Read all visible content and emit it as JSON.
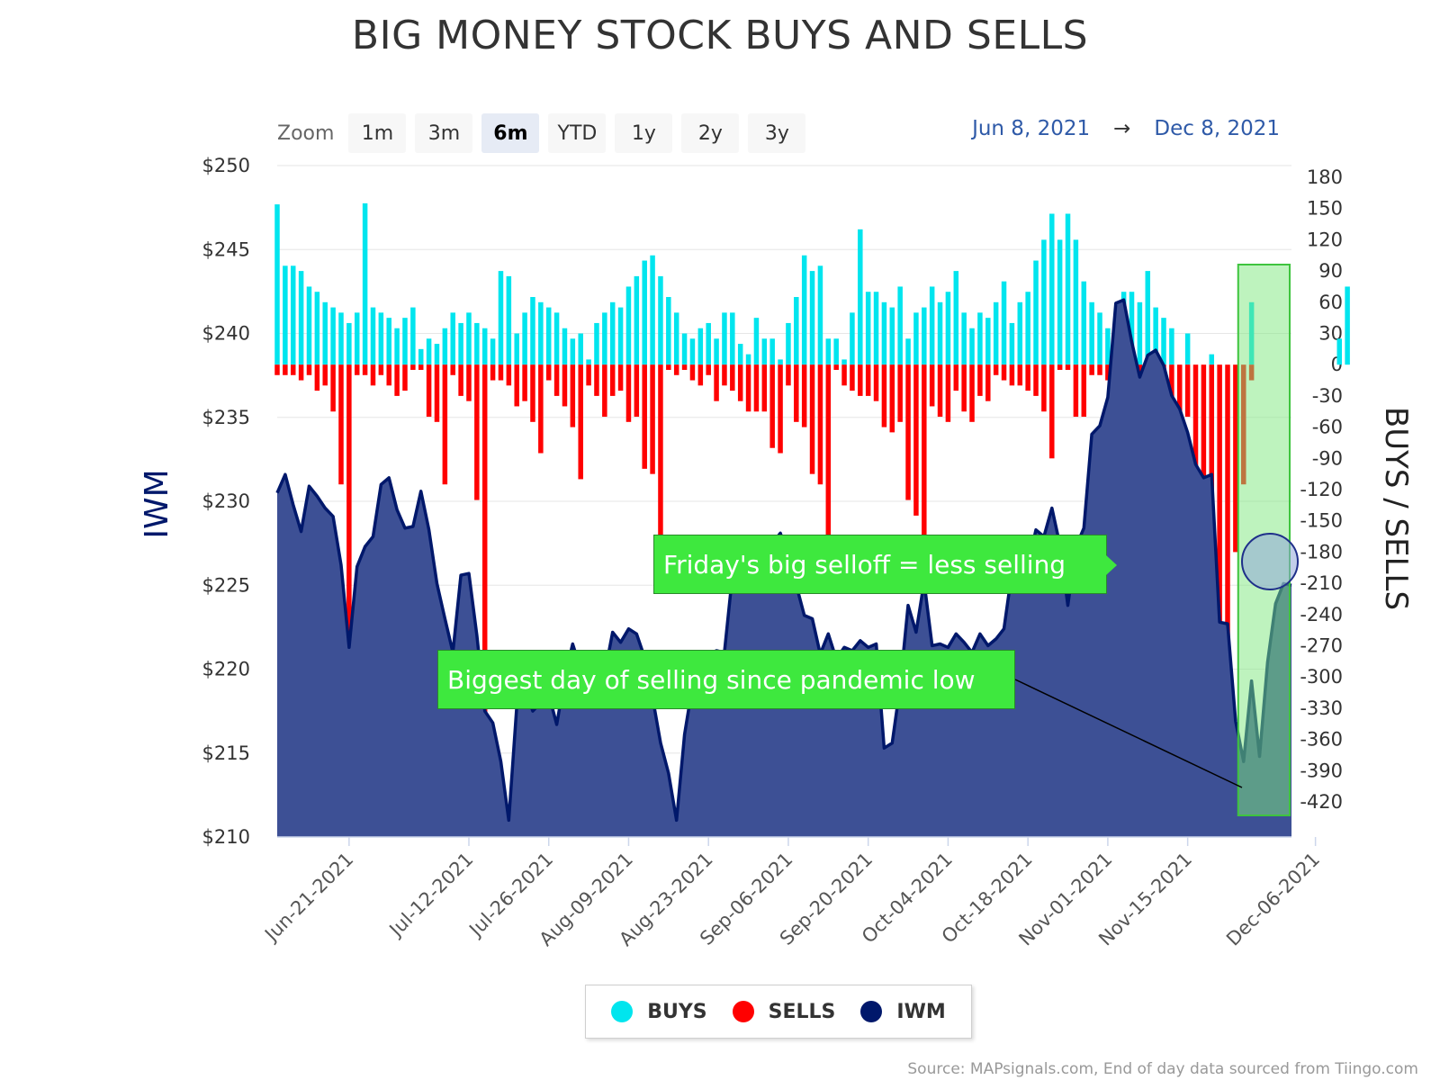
{
  "title": "BIG MONEY STOCK BUYS AND SELLS",
  "zoom": {
    "label": "Zoom",
    "buttons": [
      "1m",
      "3m",
      "6m",
      "YTD",
      "1y",
      "2y",
      "3y"
    ],
    "active": "6m"
  },
  "date_range": {
    "from": "Jun 8, 2021",
    "arrow": "→",
    "to": "Dec 8, 2021"
  },
  "legend": [
    {
      "name": "BUYS",
      "color": "#00e5ee"
    },
    {
      "name": "SELLS",
      "color": "#ff0000"
    },
    {
      "name": "IWM",
      "color": "#00186b"
    }
  ],
  "annotations": {
    "selloff": "Friday's big selloff = less selling",
    "biggest": "Biggest day of selling since pandemic low"
  },
  "source": "Source: MAPsignals.com, End of day data sourced from Tiingo.com",
  "colors": {
    "buys": "#00e5ee",
    "sells": "#ff0000",
    "iwm_line": "#00186b",
    "iwm_fill": "#3d5095",
    "highlight": "#7ee87e"
  },
  "chart_data": {
    "type": "bar",
    "title": "BIG MONEY STOCK BUYS AND SELLS",
    "ylabel_left": "IWM",
    "ylabel_right": "BUYS / SELLS",
    "yticks_left": [
      "$250",
      "$245",
      "$240",
      "$235",
      "$230",
      "$225",
      "$220",
      "$215",
      "$210"
    ],
    "yticks_right": [
      "180",
      "150",
      "120",
      "90",
      "60",
      "30",
      "0",
      "-30",
      "-60",
      "-90",
      "-120",
      "-150",
      "-180",
      "-210",
      "-240",
      "-270",
      "-300",
      "-330",
      "-360",
      "-390",
      "-420"
    ],
    "xticks": [
      "Jun-21-2021",
      "Jul-12-2021",
      "Jul-26-2021",
      "Aug-09-2021",
      "Aug-23-2021",
      "Sep-06-2021",
      "Sep-20-2021",
      "Oct-04-2021",
      "Oct-18-2021",
      "Nov-01-2021",
      "Nov-15-2021",
      "Dec-06-2021"
    ],
    "ylim_left": [
      210,
      250
    ],
    "ylim_right": [
      -450,
      195
    ],
    "buys": [
      154,
      95,
      95,
      90,
      75,
      70,
      60,
      55,
      50,
      40,
      50,
      155,
      55,
      50,
      45,
      35,
      45,
      55,
      15,
      25,
      20,
      35,
      50,
      40,
      50,
      40,
      35,
      25,
      90,
      85,
      30,
      50,
      65,
      60,
      55,
      50,
      35,
      25,
      30,
      5,
      40,
      50,
      60,
      55,
      75,
      85,
      100,
      105,
      85,
      65,
      50,
      30,
      25,
      35,
      40,
      25,
      50,
      50,
      20,
      10,
      45,
      25,
      25,
      5,
      40,
      65,
      105,
      90,
      95,
      25,
      25,
      5,
      50,
      130,
      70,
      70,
      60,
      55,
      75,
      25,
      50,
      55,
      75,
      60,
      70,
      90,
      50,
      35,
      50,
      45,
      60,
      80,
      40,
      60,
      70,
      100,
      120,
      145,
      120,
      145,
      120,
      80,
      60,
      50,
      35,
      30,
      70,
      70,
      60,
      90,
      55,
      45,
      35,
      0,
      30,
      0,
      0,
      10,
      0,
      0,
      0,
      0,
      60,
      0,
      0,
      0,
      0,
      0,
      0,
      0,
      0,
      0,
      0,
      25,
      75
    ],
    "sells": [
      -10,
      -10,
      -10,
      -15,
      -10,
      -25,
      -20,
      -45,
      -115,
      -405,
      -10,
      -10,
      -20,
      -10,
      -20,
      -30,
      -25,
      -5,
      -5,
      -50,
      -55,
      -115,
      -10,
      -30,
      -35,
      -130,
      -350,
      -15,
      -15,
      -20,
      -40,
      -35,
      -55,
      -85,
      -15,
      -30,
      -40,
      -60,
      -110,
      -20,
      -30,
      -50,
      -30,
      -25,
      -55,
      -50,
      -100,
      -105,
      -170,
      -5,
      -10,
      -5,
      -15,
      -20,
      -10,
      -35,
      -20,
      -25,
      -35,
      -45,
      -45,
      -45,
      -80,
      -85,
      -20,
      -55,
      -60,
      -105,
      -115,
      -175,
      -5,
      -20,
      -25,
      -30,
      -30,
      -35,
      -60,
      -65,
      -55,
      -130,
      -145,
      -165,
      -40,
      -50,
      -55,
      -25,
      -45,
      -55,
      -30,
      -35,
      -10,
      -15,
      -20,
      -20,
      -25,
      -30,
      -45,
      -90,
      -5,
      -5,
      -50,
      -50,
      -10,
      -10,
      -15,
      -45,
      -35,
      -45,
      -100,
      -120,
      -140,
      -135,
      -150,
      -165,
      -50,
      -160,
      -180,
      -385,
      -415,
      -425,
      -180,
      -115,
      -15,
      0,
      0,
      0,
      0,
      0,
      0,
      0,
      0,
      0,
      0,
      0,
      0
    ],
    "iwm": [
      230.5,
      231.6,
      229.8,
      228.2,
      230.9,
      230.3,
      229.6,
      229.1,
      226.2,
      221.3,
      226.1,
      227.3,
      227.9,
      231.0,
      231.4,
      229.5,
      228.4,
      228.5,
      230.6,
      228.3,
      225.1,
      223.0,
      221.0,
      225.6,
      225.7,
      222.0,
      217.5,
      216.8,
      214.5,
      211.0,
      217.8,
      218.8,
      217.5,
      218.0,
      218.5,
      216.7,
      219.5,
      221.5,
      220.0,
      219.6,
      218.3,
      219.7,
      222.2,
      221.6,
      222.4,
      222.1,
      220.7,
      218.3,
      215.6,
      213.8,
      211.0,
      216.1,
      219.0,
      220.2,
      220.9,
      221.1,
      221.0,
      225.6,
      226.0,
      225.0,
      225.7,
      226.1,
      227.5,
      228.1,
      226.7,
      225.0,
      223.2,
      223.0,
      220.9,
      222.1,
      220.6,
      221.3,
      221.1,
      221.7,
      221.3,
      221.5,
      215.3,
      215.6,
      219.0,
      223.8,
      222.2,
      225.2,
      221.4,
      221.5,
      221.3,
      222.1,
      221.6,
      221.0,
      222.1,
      221.4,
      221.8,
      222.4,
      225.8,
      225.3,
      226.2,
      228.3,
      227.9,
      229.6,
      227.4,
      223.8,
      227.3,
      228.4,
      234.0,
      234.5,
      236.2,
      241.8,
      242.0,
      239.5,
      237.4,
      238.7,
      239.0,
      238.1,
      236.3,
      235.5,
      234.1,
      232.2,
      231.4,
      231.6,
      222.8,
      222.7,
      216.9,
      214.5,
      219.3,
      214.8,
      220.4,
      223.9,
      225.1,
      225.0
    ]
  }
}
